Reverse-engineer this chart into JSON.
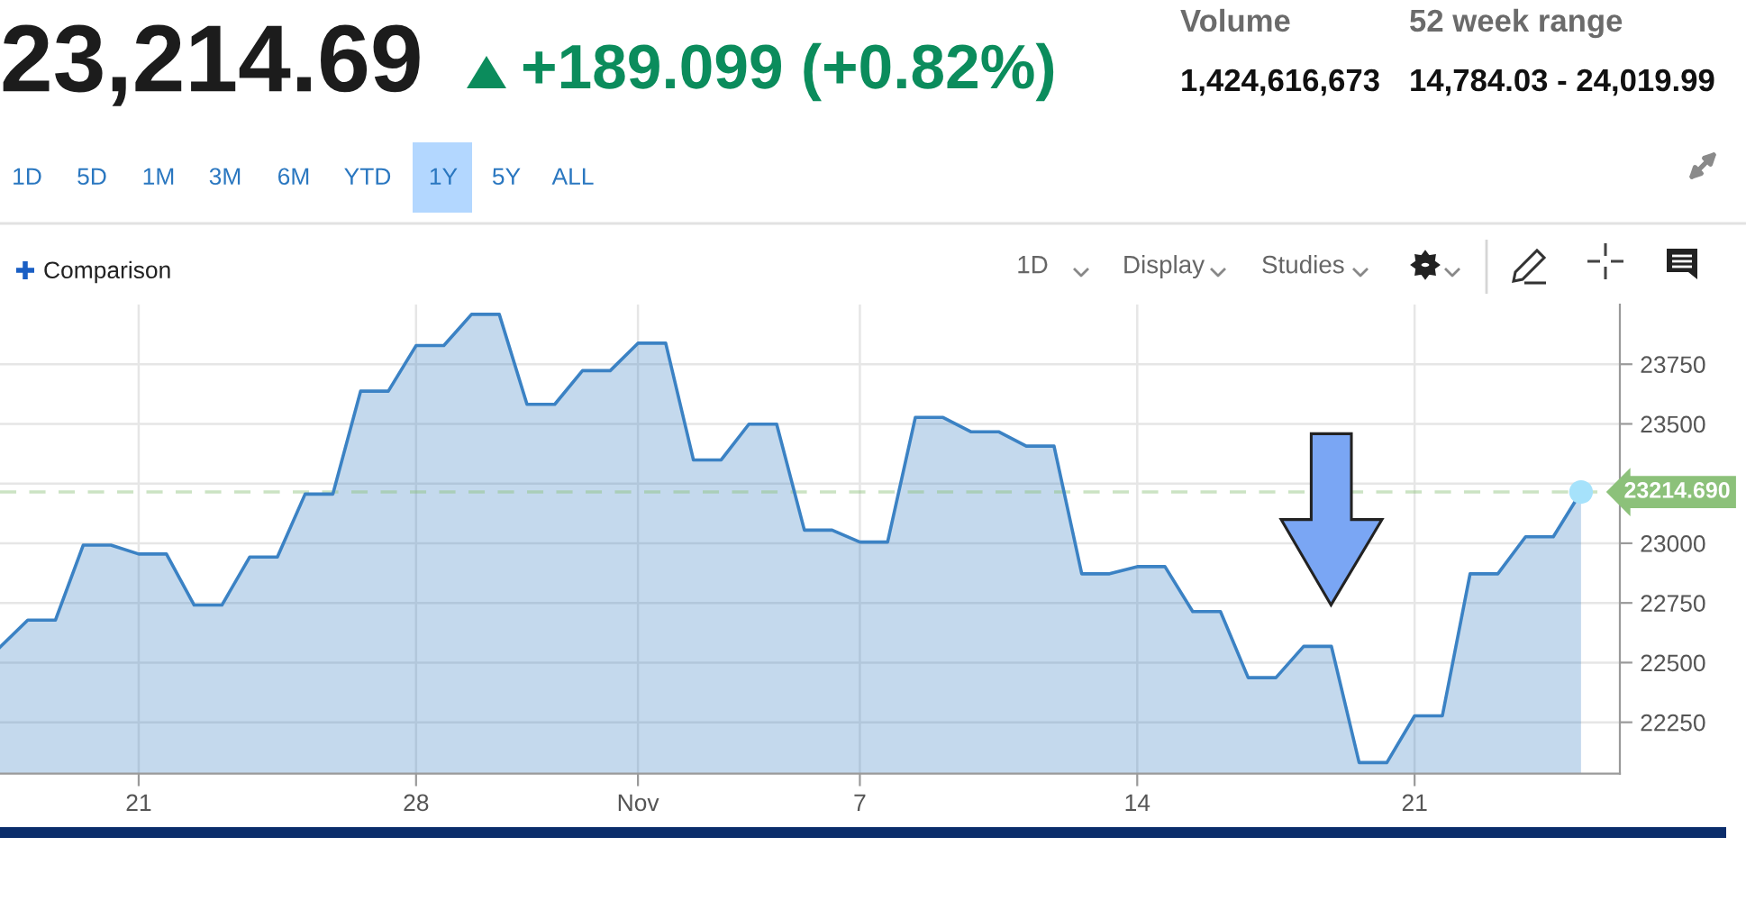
{
  "chart_data": {
    "type": "area",
    "title": "23,214.69",
    "subtitle": "+189.099 (+0.82%)",
    "annotations": [
      "Volume",
      "1,424,616,673",
      "52 week range",
      "14,784.03 - 24,019.99",
      "1D",
      "5D",
      "1M",
      "3M",
      "6M",
      "YTD",
      "1Y",
      "5Y",
      "ALL",
      "Comparison",
      "1D",
      "Display",
      "Studies"
    ],
    "categories": [
      null,
      null,
      null,
      null,
      null,
      "21",
      null,
      null,
      null,
      null,
      null,
      null,
      null,
      null,
      null,
      "28",
      null,
      null,
      null,
      null,
      null,
      null,
      null,
      "Nov",
      null,
      null,
      null,
      null,
      null,
      null,
      null,
      "7",
      null,
      null,
      null,
      null,
      null,
      null,
      null,
      null,
      null,
      "14",
      null,
      null,
      null,
      null,
      null,
      null,
      null,
      null,
      null,
      "21",
      null,
      null,
      null,
      null,
      null,
      null
    ],
    "series": [
      {
        "color": "#3b82c4",
        "values": [
          22565,
          22678,
          22678,
          22992,
          22992,
          22955,
          22955,
          22741,
          22741,
          22942,
          22942,
          23206,
          23206,
          23637,
          23637,
          23828,
          23828,
          23959,
          23959,
          23582,
          23582,
          23723,
          23723,
          23838,
          23838,
          23349,
          23349,
          23499,
          23499,
          23055,
          23055,
          23005,
          23005,
          23527,
          23527,
          23467,
          23467,
          23407,
          23407,
          22872,
          22872,
          22902,
          22902,
          22714,
          22714,
          22437,
          22437,
          22568,
          22568,
          22081,
          22081,
          22277,
          22277,
          22872,
          22872,
          23027,
          23027,
          23214.69
        ]
      },
      {
        "type": "scatter",
        "color": "#a6e2fb",
        "marker": "circle",
        "values": [
          null,
          null,
          null,
          null,
          null,
          null,
          null,
          null,
          null,
          null,
          null,
          null,
          null,
          null,
          null,
          null,
          null,
          null,
          null,
          null,
          null,
          null,
          null,
          null,
          null,
          null,
          null,
          null,
          null,
          null,
          null,
          null,
          null,
          null,
          null,
          null,
          null,
          null,
          null,
          null,
          null,
          null,
          null,
          null,
          null,
          null,
          null,
          null,
          null,
          null,
          null,
          null,
          null,
          null,
          null,
          null,
          null,
          23214.69
        ]
      }
    ],
    "ylim": [
      22035,
      24000
    ],
    "yticks": [
      22250,
      22500,
      22750,
      23000,
      {
        "value": 23250,
        "label": null
      },
      23500,
      23750
    ],
    "ref_lines": [
      {
        "axis": "y",
        "value": 23214.69,
        "label": "23214.690",
        "color": "#8cc17a",
        "line_style": "dashed"
      }
    ],
    "grid": true
  }
}
